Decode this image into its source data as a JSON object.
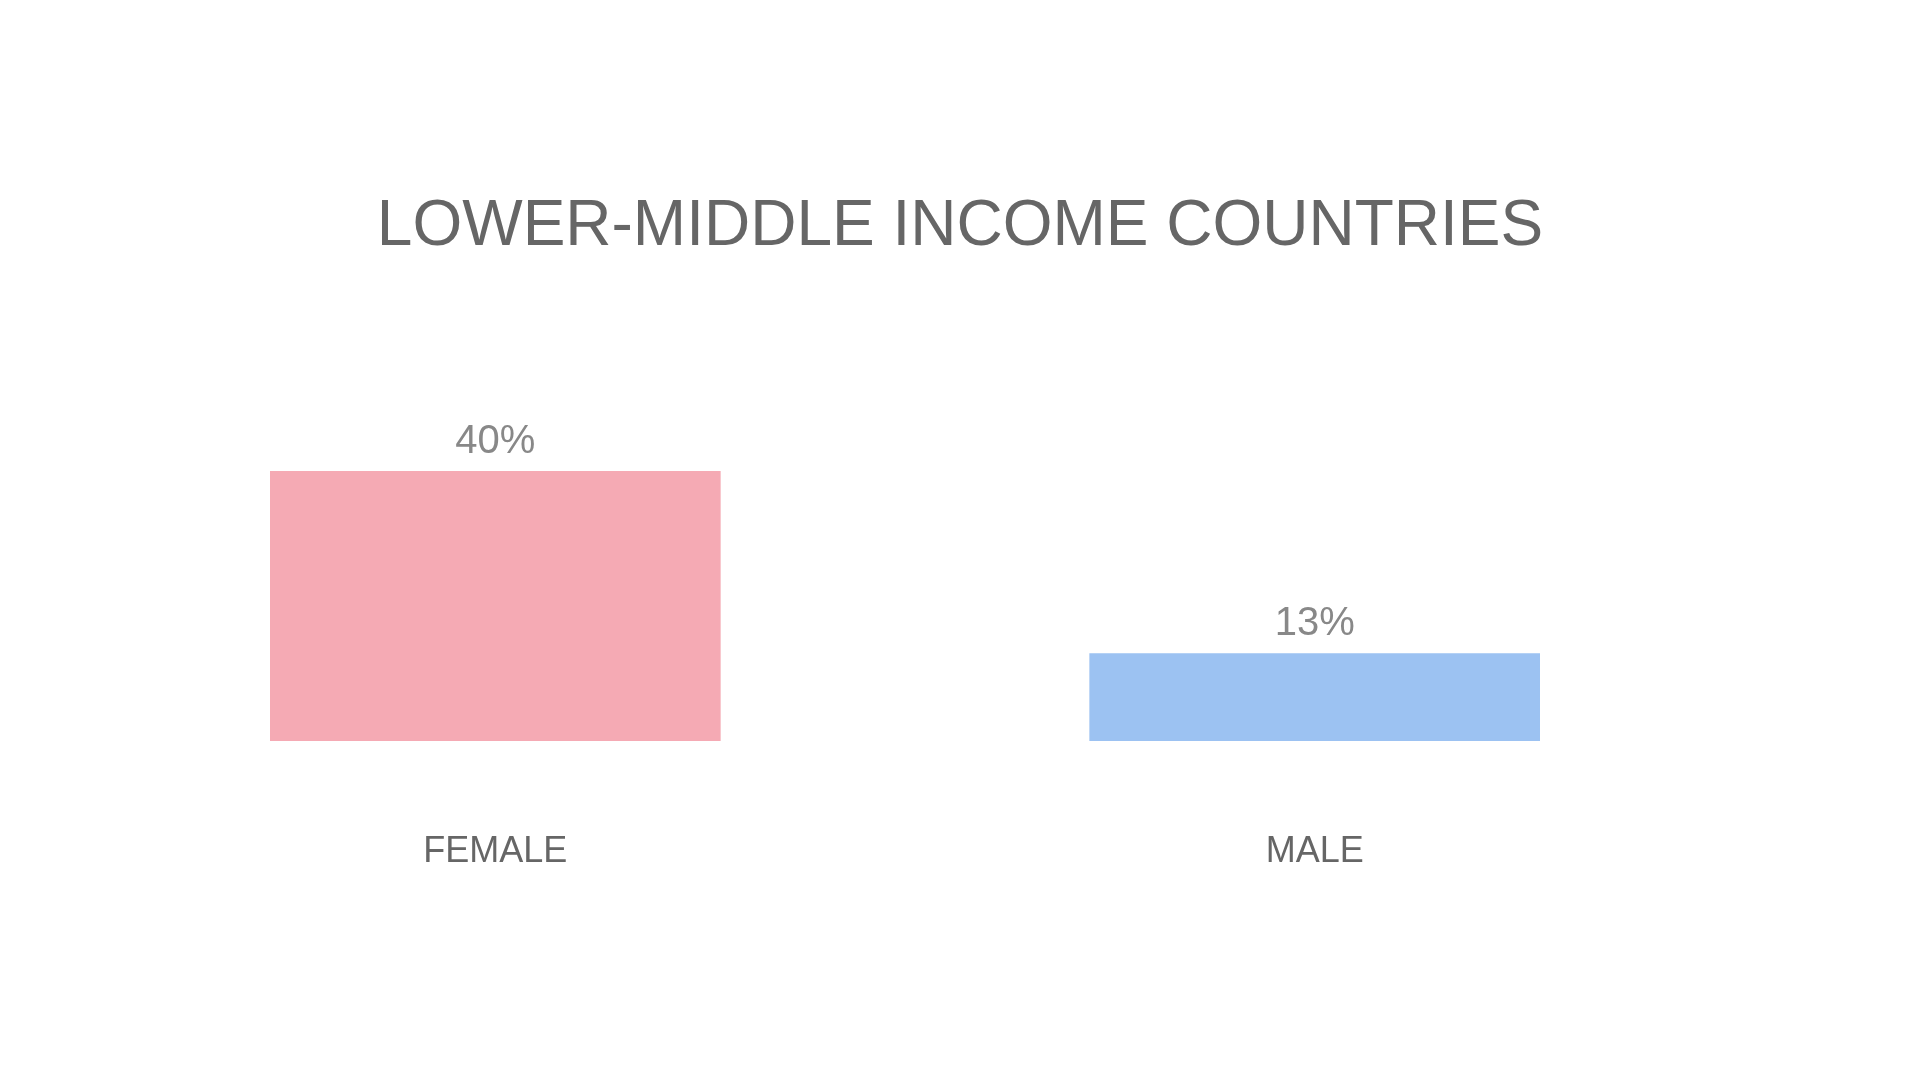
{
  "chart_data": {
    "type": "bar",
    "title": "LOWER-MIDDLE INCOME COUNTRIES",
    "categories": [
      "FEMALE",
      "MALE"
    ],
    "values": [
      40,
      13
    ],
    "colors": [
      "#f5aab4",
      "#9cc2f2"
    ],
    "value_labels": [
      "40%",
      "13%"
    ]
  }
}
